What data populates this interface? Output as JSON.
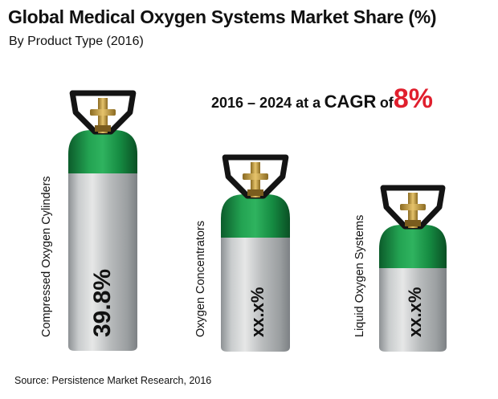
{
  "title": "Global Medical Oxygen Systems Market Share (%)",
  "subtitle": "By Product Type (2016)",
  "cagr": {
    "prefix": "2016 – 2024 at a",
    "keyword": "CAGR",
    "connector": "of",
    "value": "8%",
    "value_color": "#e01f2d"
  },
  "source": "Source: Persistence Market Research, 2016",
  "colors": {
    "cap_green": "#17803f",
    "body_silver": "#b4b8ba",
    "valve_black": "#141414",
    "brass": "#c9a34a"
  },
  "chart_data": {
    "type": "bar",
    "title": "Global Medical Oxygen Systems Market Share (%)",
    "subtitle": "By Product Type (2016)",
    "categories": [
      "Compressed Oxygen Cylinders",
      "Oxygen Concentrators",
      "Liquid Oxygen Systems"
    ],
    "value_labels": [
      "39.8%",
      "xx.x%",
      "xx.x%"
    ],
    "series": [
      {
        "values": [
          39.8,
          null,
          null
        ]
      }
    ],
    "unit": "%",
    "legend": "none",
    "grid": false
  }
}
